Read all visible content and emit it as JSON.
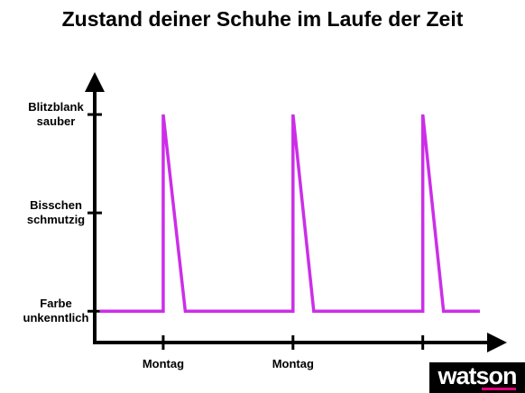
{
  "chart_data": {
    "type": "line",
    "title": "Zustand deiner Schuhe im Laufe der Zeit",
    "x": [
      0.51,
      1,
      1,
      1.17,
      2,
      2,
      2.16,
      3,
      3,
      3.16,
      3.44
    ],
    "series": [
      {
        "color": "#cc2ee8",
        "values": [
          0,
          0,
          2,
          0,
          0,
          2,
          0,
          0,
          2,
          0,
          0
        ]
      }
    ],
    "xlim": [
      0.5,
      3.6
    ],
    "ylim": [
      -0.3,
      2.4
    ],
    "xticks": [
      {
        "value": 1,
        "label": "Montag"
      },
      {
        "value": 2,
        "label": "Montag"
      },
      {
        "value": 3,
        "label": null
      }
    ],
    "yticks": [
      {
        "value": 0,
        "label": "Farbe unkenntlich"
      },
      {
        "value": 1,
        "label": "Bisschen schmutzig"
      },
      {
        "value": 2,
        "label": "Blitzblank sauber"
      }
    ],
    "grid": false
  },
  "logo": "watson"
}
